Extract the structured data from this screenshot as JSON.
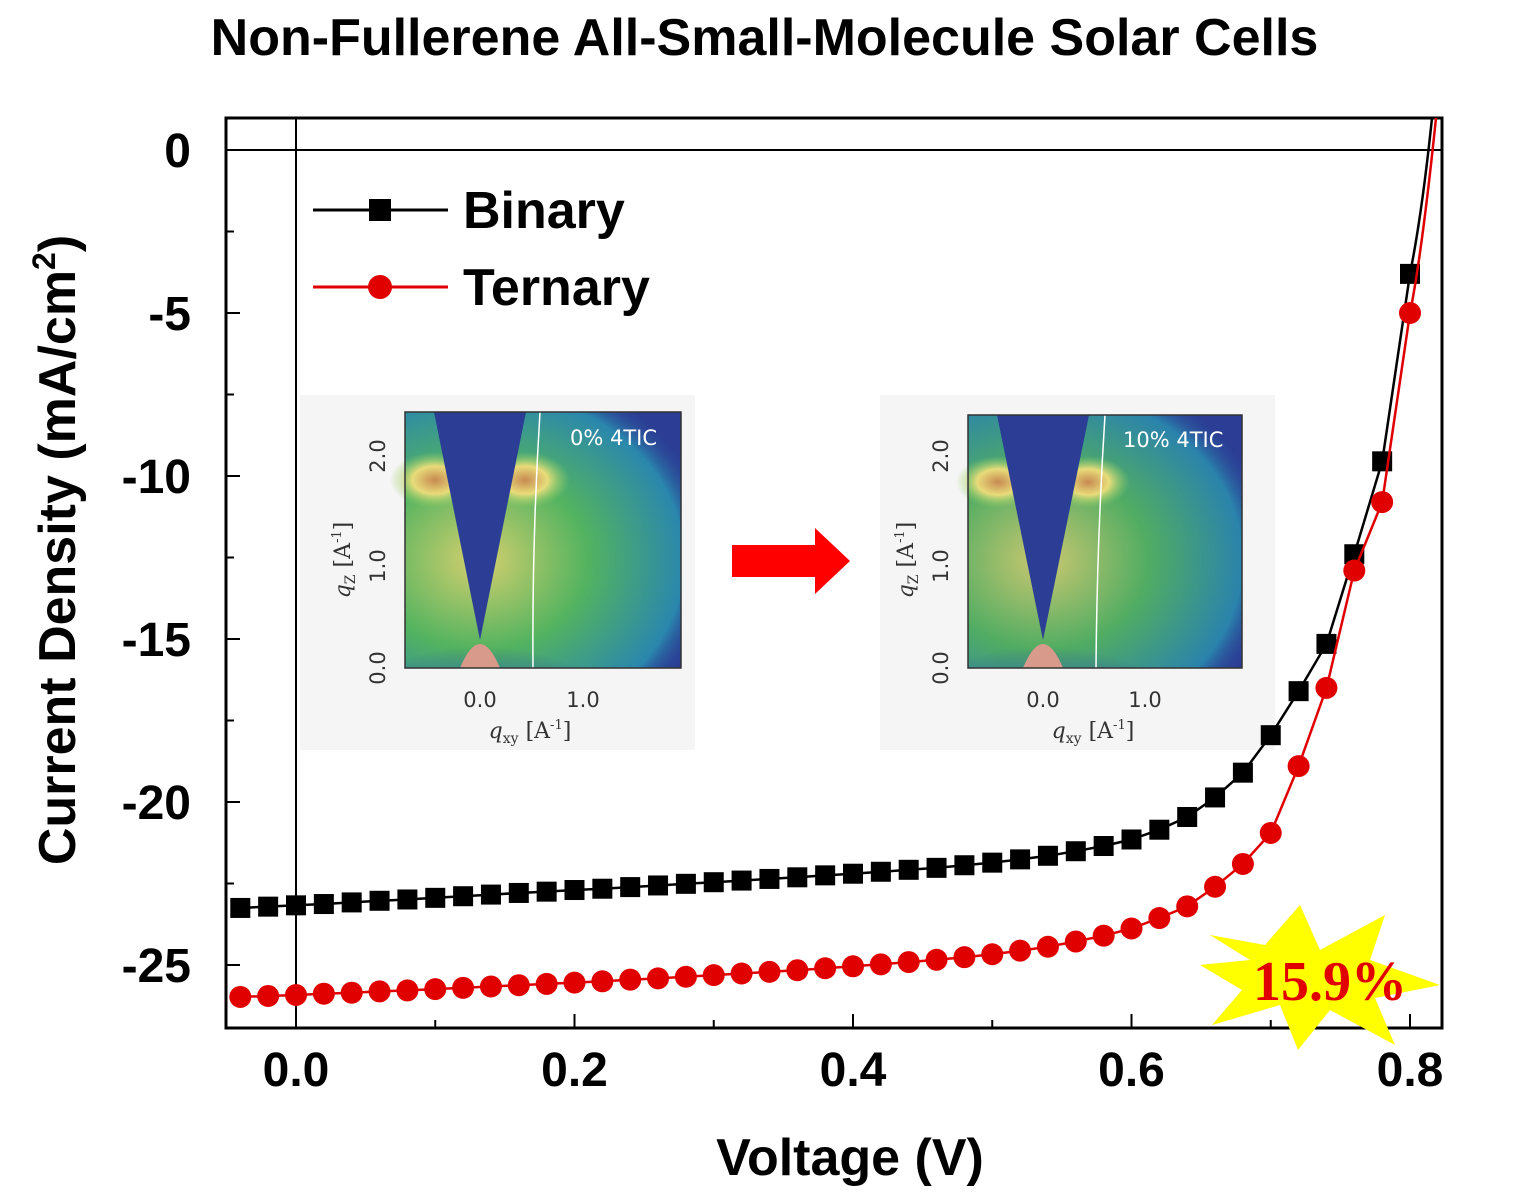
{
  "title": "Non-Fullerene All-Small-Molecule Solar Cells",
  "chart_data": {
    "type": "line",
    "xlabel": "Voltage (V)",
    "ylabel": "Current Density (mA/cm",
    "ylabel_sup": "2",
    "ylabel_end": ")",
    "xlim": [
      -0.05,
      0.82
    ],
    "ylim": [
      -27,
      1
    ],
    "x_ticks": [
      "0.0",
      "0.2",
      "0.4",
      "0.6",
      "0.8"
    ],
    "x_tick_values": [
      0.0,
      0.2,
      0.4,
      0.6,
      0.8
    ],
    "y_ticks": [
      "0",
      "-5",
      "-10",
      "-15",
      "-20",
      "-25"
    ],
    "y_tick_values": [
      0,
      -5,
      -10,
      -15,
      -20,
      -25
    ],
    "legend_position": "top-left",
    "x": [
      -0.04,
      -0.02,
      0.0,
      0.02,
      0.04,
      0.06,
      0.08,
      0.1,
      0.12,
      0.14,
      0.16,
      0.18,
      0.2,
      0.22,
      0.24,
      0.26,
      0.28,
      0.3,
      0.32,
      0.34,
      0.36,
      0.38,
      0.4,
      0.42,
      0.44,
      0.46,
      0.48,
      0.5,
      0.52,
      0.54,
      0.56,
      0.58,
      0.6,
      0.62,
      0.64,
      0.66,
      0.68,
      0.7,
      0.72,
      0.74,
      0.76,
      0.78,
      0.8
    ],
    "series": [
      {
        "name": "Binary",
        "color": "#000000",
        "marker": "square",
        "values": [
          -23.25,
          -23.21,
          -23.17,
          -23.13,
          -23.08,
          -23.03,
          -22.99,
          -22.94,
          -22.89,
          -22.84,
          -22.79,
          -22.75,
          -22.7,
          -22.66,
          -22.61,
          -22.56,
          -22.51,
          -22.46,
          -22.41,
          -22.36,
          -22.31,
          -22.25,
          -22.2,
          -22.14,
          -22.08,
          -22.02,
          -21.94,
          -21.86,
          -21.76,
          -21.65,
          -21.51,
          -21.35,
          -21.15,
          -20.85,
          -20.46,
          -19.86,
          -19.1,
          -17.95,
          -16.6,
          -15.15,
          -12.4,
          -9.55,
          -3.8
        ]
      },
      {
        "name": "Ternary",
        "color": "#e00000",
        "marker": "circle",
        "values": [
          -25.98,
          -25.95,
          -25.92,
          -25.88,
          -25.85,
          -25.81,
          -25.78,
          -25.74,
          -25.7,
          -25.66,
          -25.62,
          -25.58,
          -25.54,
          -25.5,
          -25.45,
          -25.41,
          -25.36,
          -25.31,
          -25.26,
          -25.21,
          -25.16,
          -25.1,
          -25.04,
          -24.98,
          -24.91,
          -24.84,
          -24.76,
          -24.67,
          -24.56,
          -24.44,
          -24.28,
          -24.1,
          -23.88,
          -23.56,
          -23.2,
          -22.6,
          -21.9,
          -20.95,
          -18.9,
          -16.5,
          -12.9,
          -10.8,
          -5.0
        ]
      }
    ],
    "inset_images": [
      {
        "label": "0% 4TIC",
        "x_ticks": [
          "0.0",
          "1.0"
        ],
        "y_ticks": [
          "0.0",
          "1.0",
          "2.0"
        ],
        "xlabel": "q",
        "xlabel_sub": "xy",
        "xlabel_unit": " [A",
        "xlabel_sup": "-1",
        "ylabel": "q",
        "ylabel_sub": "Z",
        "ylabel_unit": " [A",
        "ylabel_sup": "-1"
      },
      {
        "label": "10% 4TIC",
        "x_ticks": [
          "0.0",
          "1.0"
        ],
        "y_ticks": [
          "0.0",
          "1.0",
          "2.0"
        ],
        "xlabel": "q",
        "xlabel_sub": "xy",
        "xlabel_unit": " [A",
        "xlabel_sup": "-1",
        "ylabel": "q",
        "ylabel_sub": "Z",
        "ylabel_unit": " [A",
        "ylabel_sup": "-1"
      }
    ],
    "annotation": "15.9%",
    "colors": {
      "binary": "#000000",
      "ternary": "#e00000",
      "burst": "#ffff00",
      "arrow": "#ff0000",
      "giwaxs_bg": "#2b3d94"
    }
  }
}
